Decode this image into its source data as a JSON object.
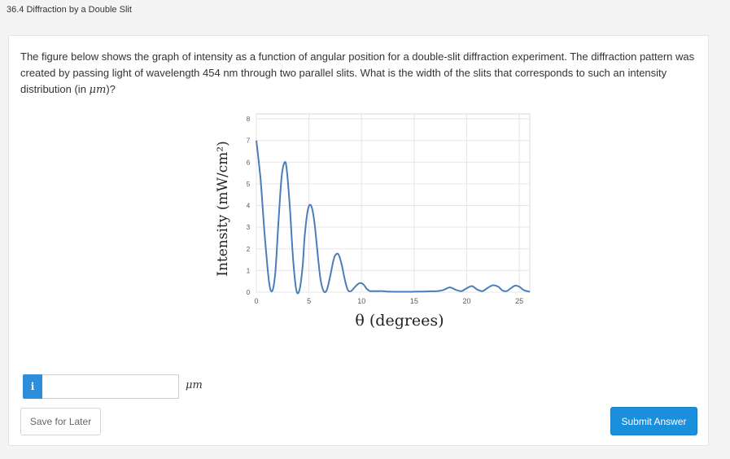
{
  "header": {
    "title": "36.4 Diffraction by a Double Slit"
  },
  "question": {
    "text": "The figure below shows the graph of intensity as a function of angular position for a double-slit diffraction experiment. The diffraction pattern was created by passing light of wavelength 454 nm through two parallel slits. What is the width of the slits that corresponds to such an intensity distribution (in ",
    "unit_inline": "μm",
    "text_end": ")?"
  },
  "answer": {
    "info_icon_label": "i",
    "value": "",
    "placeholder": "",
    "unit": "μm"
  },
  "buttons": {
    "save_label": "Save for Later",
    "submit_label": "Submit Answer"
  },
  "colors": {
    "line": "#4a7ebb",
    "accent": "#1a8fdc"
  },
  "chart_data": {
    "type": "line",
    "title": "",
    "xlabel": "θ (degrees)",
    "ylabel": "Intensity (mW/cm²)",
    "xlim": [
      0,
      26
    ],
    "ylim": [
      0,
      8
    ],
    "x_ticks": [
      "0",
      "5",
      "10",
      "15",
      "20",
      "25"
    ],
    "y_ticks": [
      "0",
      "1",
      "2",
      "3",
      "4",
      "5",
      "6",
      "7",
      "8"
    ],
    "grid": true,
    "series": [
      {
        "x": [
          0,
          0.4,
          0.8,
          1.2,
          1.5,
          1.8,
          2.1,
          2.4,
          2.7,
          2.9,
          3.2,
          3.5,
          3.8,
          4.1,
          4.4,
          4.6,
          4.9,
          5.2,
          5.5,
          5.8,
          6.1,
          6.4,
          6.7,
          7.0,
          7.3,
          7.5,
          7.8,
          8.1,
          8.4,
          8.7,
          9.0,
          9.3,
          9.6,
          9.9,
          10.2,
          10.5,
          10.8,
          11.1,
          11.4,
          11.7,
          12.0,
          12.4,
          13.0,
          13.6,
          14.2,
          14.8,
          15.4,
          16.0,
          16.6,
          17.2,
          17.8,
          18.4,
          19.0,
          19.5,
          20.0,
          20.5,
          21.0,
          21.5,
          22.0,
          22.5,
          23.0,
          23.4,
          23.8,
          24.2,
          24.6,
          25.0,
          25.4,
          25.8,
          26.0
        ],
        "values": [
          7.0,
          5.2,
          2.6,
          0.5,
          0.05,
          0.9,
          3.2,
          5.3,
          6.0,
          5.6,
          3.8,
          1.5,
          0.1,
          0.1,
          1.2,
          2.6,
          3.8,
          4.0,
          3.3,
          1.9,
          0.6,
          0.05,
          0.1,
          0.7,
          1.4,
          1.7,
          1.75,
          1.3,
          0.6,
          0.1,
          0.05,
          0.2,
          0.35,
          0.42,
          0.35,
          0.15,
          0.05,
          0.05,
          0.05,
          0.05,
          0.05,
          0.03,
          0.02,
          0.02,
          0.02,
          0.02,
          0.03,
          0.03,
          0.04,
          0.05,
          0.1,
          0.22,
          0.1,
          0.05,
          0.18,
          0.28,
          0.12,
          0.05,
          0.2,
          0.32,
          0.25,
          0.08,
          0.05,
          0.18,
          0.3,
          0.25,
          0.1,
          0.04,
          0.02
        ]
      }
    ]
  }
}
